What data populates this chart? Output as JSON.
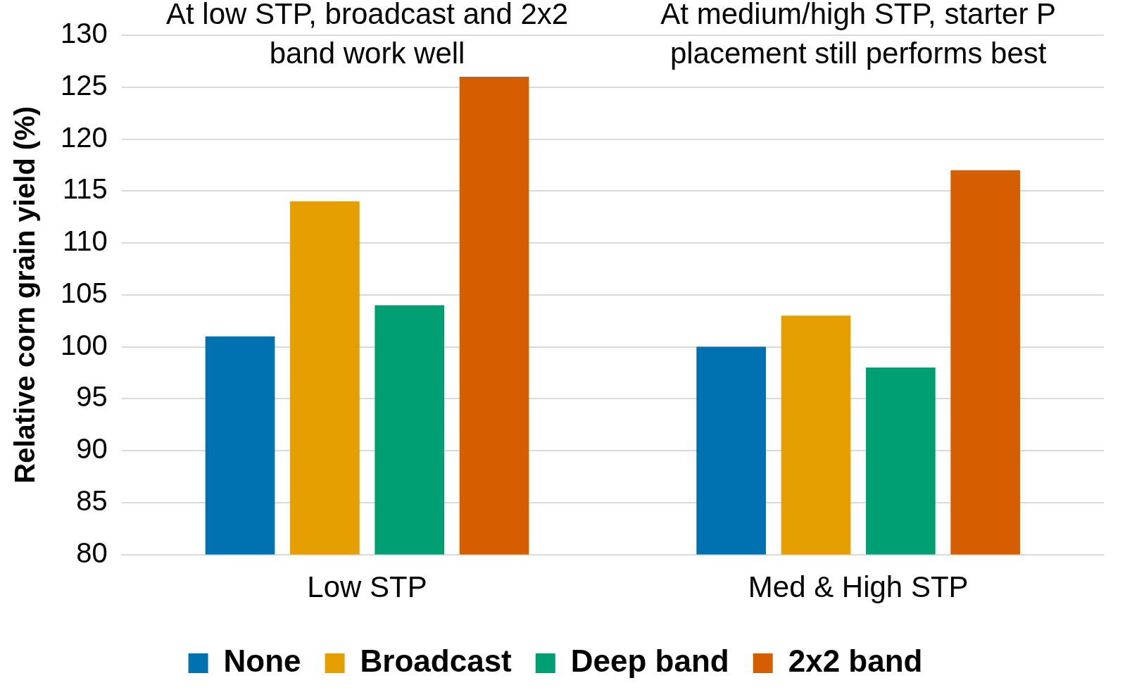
{
  "chart_data": {
    "type": "bar",
    "ylabel": "Relative corn grain yield (%)",
    "categories": [
      "Low STP",
      "Med & High STP"
    ],
    "series": [
      {
        "name": "None",
        "color": "#0072b2",
        "values": [
          101,
          100
        ]
      },
      {
        "name": "Broadcast",
        "color": "#e69f00",
        "values": [
          114,
          103
        ]
      },
      {
        "name": "Deep band",
        "color": "#009e73",
        "values": [
          104,
          98
        ]
      },
      {
        "name": "2x2 band",
        "color": "#d55e00",
        "values": [
          126,
          117
        ]
      }
    ],
    "ylim": [
      80,
      130
    ],
    "yticks": [
      80,
      85,
      90,
      95,
      100,
      105,
      110,
      115,
      120,
      125,
      130
    ],
    "grid": "y",
    "legend": "bottom",
    "annotations": [
      "At low STP, broadcast and 2x2 band work well",
      "At medium/high STP, starter P placement still performs best"
    ]
  }
}
